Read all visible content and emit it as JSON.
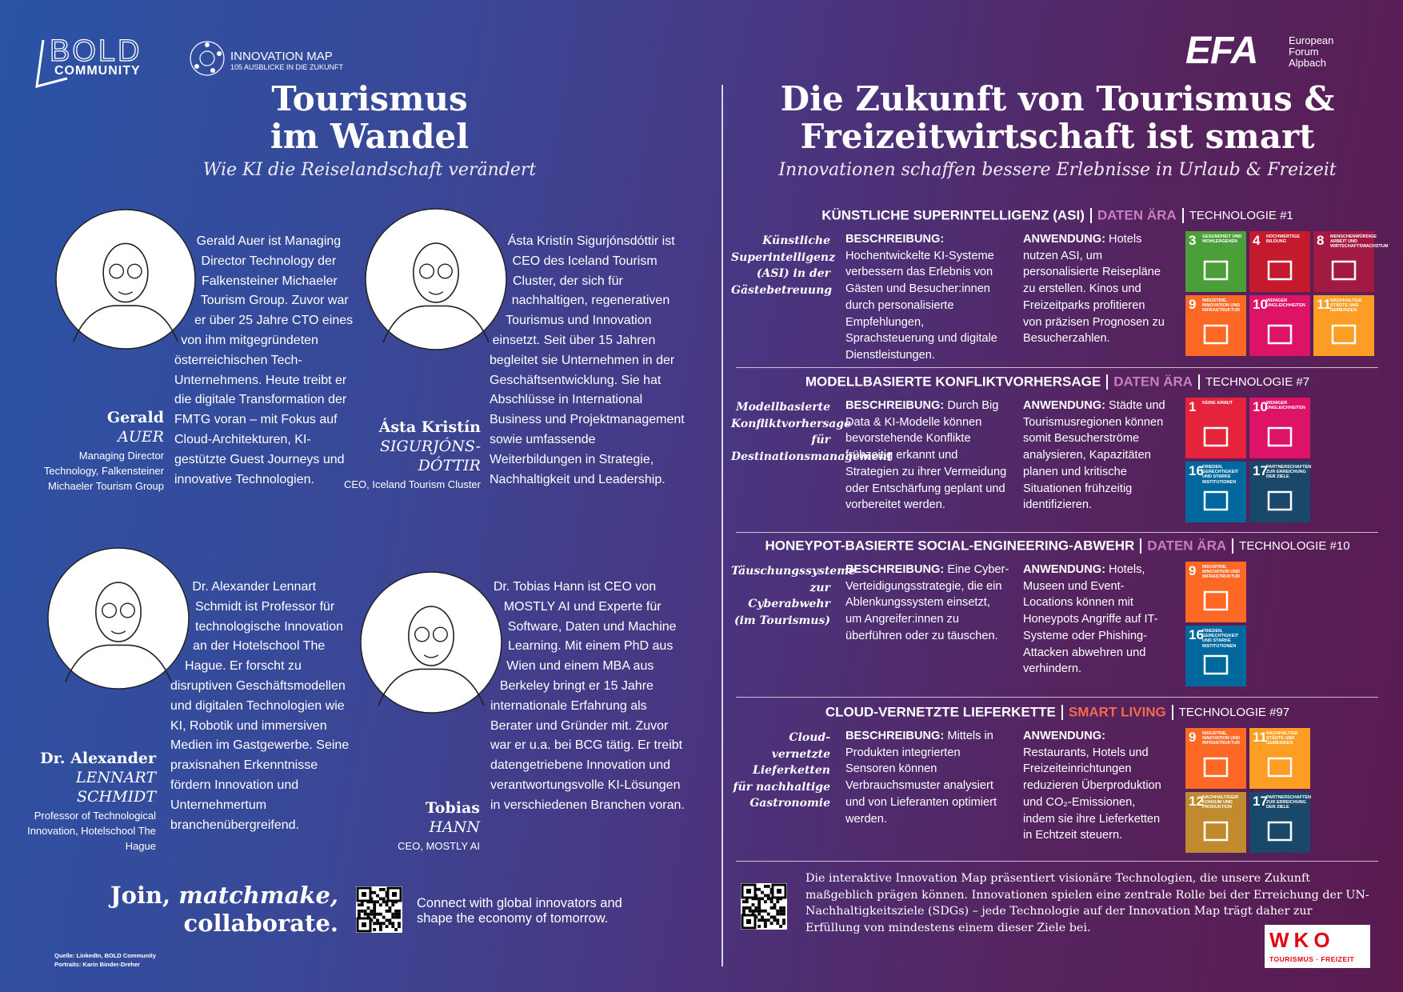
{
  "header": {
    "bold": "BOLD",
    "community": "COMMUNITY",
    "innovation_map": "INNOVATION MAP",
    "innovation_map_sub": "105 AUSBLICKE IN DIE ZUKUNFT",
    "efa": "EFA",
    "efa_name": [
      "European",
      "Forum",
      "Alpbach"
    ]
  },
  "left": {
    "title": [
      "Tourismus",
      "im Wandel"
    ],
    "subtitle": "Wie KI die Reiselandschaft verändert",
    "people": [
      {
        "first_name": "Gerald",
        "last_name": [
          "AUER"
        ],
        "role": "Managing Director Technology, Falkensteiner Michaeler Tourism Group",
        "bio": "Gerald Auer ist Managing Director Technology der Falkensteiner Michaeler Tourism Group. Zuvor war er über 25 Jahre CTO eines von ihm mitgegründeten österreichischen Tech-Unternehmens. Heute treibt er die digitale Transformation der FMTG voran – mit Fokus auf Cloud-Architekturen, KI-gestützte Guest Journeys und innovative Technologien."
      },
      {
        "first_name": "Ásta Kristín",
        "last_name": [
          "SIGURJÓNS-",
          "DÓTTIR"
        ],
        "role": "CEO, Iceland Tourism Cluster",
        "bio": "Ásta Kristín Sigurjónsdóttir ist CEO des Iceland Tourism Cluster, der sich für nachhaltigen, regenerativen Tourismus und Innovation einsetzt. Seit über 15 Jahren begleitet sie Unternehmen in der Geschäftsentwicklung. Sie hat Abschlüsse in International Business und Projektmanagement sowie umfassende Weiterbildungen in Strategie, Nachhaltigkeit und Leadership."
      },
      {
        "first_name": "Dr. Alexander",
        "last_name": [
          "LENNART",
          "SCHMIDT"
        ],
        "role": "Professor of Technological Innovation, Hotelschool The Hague",
        "bio": "Dr. Alexander Lennart Schmidt ist Professor für technologische Innovation an der Hotelschool The Hague. Er forscht zu disruptiven Geschäftsmodellen und digitalen Technologien wie KI, Robotik und immersiven Medien im Gastgewerbe. Seine praxisnahen Erkenntnisse fördern Innovation und Unternehmertum branchenübergreifend."
      },
      {
        "first_name": "Tobias",
        "last_name": [
          "HANN"
        ],
        "role": "CEO, MOSTLY AI",
        "bio": "Dr. Tobias Hann ist CEO von MOSTLY AI und Experte für Software, Daten und Machine Learning. Mit einem PhD aus Wien und einem MBA aus Berkeley bringt er 15 Jahre internationale Erfahrung als Berater und Gründer mit. Zuvor war er u.a. bei BCG tätig. Er treibt datengetriebene Innovation und verantwortungsvolle KI-Lösungen in verschiedenen Branchen voran."
      }
    ]
  },
  "right": {
    "title": [
      "Die Zukunft von Tourismus &",
      "Freizeitwirtschaft ist smart"
    ],
    "subtitle": "Innovationen schaffen bessere Erlebnisse in Urlaub & Freizeit",
    "technologies": [
      {
        "name": "KÜNSTLICHE SUPERINTELLIGENZ (ASI)",
        "era": "DATEN ÄRA",
        "era_color": "#c77fc0",
        "number": "TECHNOLOGIE #1",
        "side_label": "Künstliche Superintelligenz (ASI) in der Gästebetreuung",
        "desc_label": "BESCHREIBUNG:",
        "description": "Hochentwickelte KI-Systeme verbessern das Erlebnis von Gästen und Besucher:innen durch personalisierte Empfehlungen, Sprachsteuerung und digitale Dienstleistungen.",
        "app_label": "ANWENDUNG:",
        "application": "Hotels nutzen ASI, um personalisierte Reisepläne zu erstellen. Kinos und Freizeitparks profitieren von präzisen Prognosen zu Besucherzahlen.",
        "sdgs": [
          {
            "number": 3,
            "label": "GESUNDHEIT UND WOHLERGEHEN",
            "color": "#4c9f38"
          },
          {
            "number": 4,
            "label": "HOCHWERTIGE BILDUNG",
            "color": "#c5192d"
          },
          {
            "number": 8,
            "label": "MENSCHENWÜRDIGE ARBEIT UND WIRTSCHAFTSWACHSTUM",
            "color": "#a21942"
          },
          {
            "number": 9,
            "label": "INDUSTRIE, INNOVATION UND INFRASTRUKTUR",
            "color": "#fd6925"
          },
          {
            "number": 10,
            "label": "WENIGER UNGLEICHHEITEN",
            "color": "#dd1367"
          },
          {
            "number": 11,
            "label": "NACHHALTIGE STÄDTE UND GEMEINDEN",
            "color": "#fd9d24"
          }
        ]
      },
      {
        "name": "MODELLBASIERTE KONFLIKTVORHERSAGE",
        "era": "DATEN ÄRA",
        "era_color": "#c77fc0",
        "number": "TECHNOLOGIE #7",
        "side_label": "Modellbasierte Konfliktvorhersage für Destinationsmanagement",
        "desc_label": "BESCHREIBUNG:",
        "description": "Durch Big Data & KI-Modelle können bevorstehende Konflikte frühzeitig erkannt und Strategien zu ihrer Vermeidung oder Entschärfung geplant und vorbereitet werden.",
        "app_label": "ANWENDUNG:",
        "application": "Städte und Tourismusregionen können somit Besucherströme analysieren, Kapazitäten planen und kritische Situationen frühzeitig identifizieren.",
        "sdgs": [
          {
            "number": 1,
            "label": "KEINE ARMUT",
            "color": "#e5243b"
          },
          {
            "number": 10,
            "label": "WENIGER UNGLEICHHEITEN",
            "color": "#dd1367"
          },
          {
            "number": 16,
            "label": "FRIEDEN, GERECHTIGKEIT UND STARKE INSTITUTIONEN",
            "color": "#00689d"
          },
          {
            "number": 17,
            "label": "PARTNERSCHAFTEN ZUR ERREICHUNG DER ZIELE",
            "color": "#19486a"
          }
        ]
      },
      {
        "name": "HONEYPOT-BASIERTE SOCIAL-ENGINEERING-ABWEHR",
        "era": "DATEN ÄRA",
        "era_color": "#c77fc0",
        "number": "TECHNOLOGIE #10",
        "side_label": "Täuschungssysteme zur Cyberabwehr (im Tourismus)",
        "desc_label": "BESCHREIBUNG:",
        "description": "Eine Cyber-Verteidigungsstrategie, die ein Ablenkungssystem einsetzt, um Angreifer:innen zu überführen oder zu täuschen.",
        "app_label": "ANWENDUNG:",
        "application": "Hotels, Museen und Event-Locations können mit Honeypots Angriffe auf IT-Systeme oder Phishing-Attacken abwehren und verhindern.",
        "sdgs": [
          {
            "number": 9,
            "label": "INDUSTRIE, INNOVATION UND INFRASTRUKTUR",
            "color": "#fd6925"
          },
          {
            "number": 16,
            "label": "FRIEDEN, GERECHTIGKEIT UND STARKE INSTITUTIONEN",
            "color": "#00689d"
          }
        ]
      },
      {
        "name": "CLOUD-VERNETZTE LIEFERKETTE",
        "era": "SMART LIVING",
        "era_color": "#f26a4f",
        "number": "TECHNOLOGIE #97",
        "side_label": "Cloud-vernetzte Lieferketten für nachhaltige Gastronomie",
        "desc_label": "BESCHREIBUNG:",
        "description": "Mittels in Produkten integrierten Sensoren können Verbrauchsmuster analysiert und von Lieferanten optimiert werden.",
        "app_label": "ANWENDUNG:",
        "application": "Restaurants, Hotels und Freizeiteinrichtungen reduzieren Überproduktion und CO₂-Emissionen, indem sie ihre Lieferketten in Echtzeit steuern.",
        "sdgs": [
          {
            "number": 9,
            "label": "INDUSTRIE, INNOVATION UND INFRASTRUKTUR",
            "color": "#fd6925"
          },
          {
            "number": 11,
            "label": "NACHHALTIGE STÄDTE UND GEMEINDEN",
            "color": "#fd9d24"
          },
          {
            "number": 12,
            "label": "NACHHALTIGE/R KONSUM UND PRODUKTION",
            "color": "#bf8b2e"
          },
          {
            "number": 17,
            "label": "PARTNERSCHAFTEN ZUR ERREICHUNG DER ZIELE",
            "color": "#19486a"
          }
        ]
      }
    ]
  },
  "footer": {
    "join": [
      "Join,",
      "matchmake,",
      "collaborate."
    ],
    "connect": "Connect with global innovators and shape the economy of tomorrow.",
    "source": "Quelle: LinkedIn, BOLD Community",
    "portraits": "Portraits: Karin Binder-Dreher",
    "info": "Die interaktive Innovation Map präsentiert visionäre Technologien, die unsere Zukunft maßgeblich prägen können. Innovationen spielen eine zentrale Rolle bei der Erreichung der UN-Nachhaltigkeitsziele (SDGs) – jede Technologie auf der Innovation Map trägt daher zur Erfüllung von mindestens einem dieser Ziele bei.",
    "wko": "WKO",
    "wko_sub": "TOURISMUS · FREIZEIT"
  }
}
